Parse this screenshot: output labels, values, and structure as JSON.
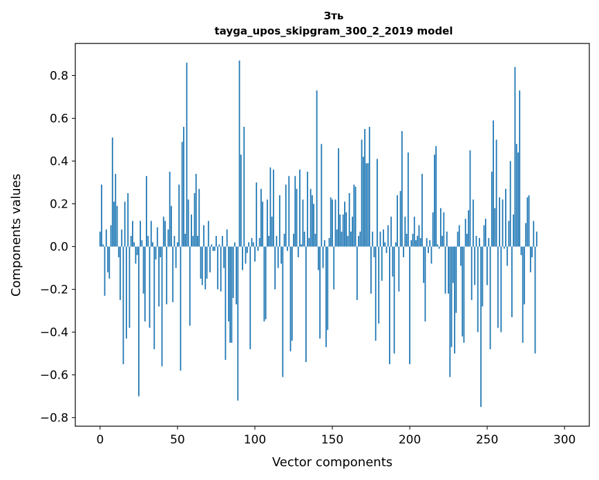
{
  "chart_data": {
    "type": "bar",
    "title_line1": "Зть",
    "title_line2": "tayga_upos_skipgram_300_2_2019 model",
    "xlabel": "Vector components",
    "ylabel": "Components values",
    "xlim": [
      -16,
      316
    ],
    "ylim": [
      -0.84,
      0.95
    ],
    "x_ticks": [
      0,
      50,
      100,
      150,
      200,
      250,
      300
    ],
    "x_tick_labels": [
      "0",
      "50",
      "100",
      "150",
      "200",
      "250",
      "300"
    ],
    "y_ticks": [
      -0.8,
      -0.6,
      -0.4,
      -0.2,
      0.0,
      0.2,
      0.4,
      0.6,
      0.8
    ],
    "y_tick_labels": [
      "−0.8",
      "−0.6",
      "−0.4",
      "−0.2",
      "0.0",
      "0.2",
      "0.4",
      "0.6",
      "0.8"
    ],
    "bar_color": "#1f77b4",
    "values": [
      0.07,
      0.29,
      0.01,
      -0.23,
      0.08,
      -0.12,
      -0.15,
      0.1,
      0.51,
      0.21,
      0.34,
      0.19,
      -0.05,
      -0.25,
      0.08,
      -0.55,
      0.21,
      -0.43,
      0.25,
      -0.38,
      0.05,
      0.12,
      0.02,
      -0.08,
      -0.04,
      -0.7,
      0.12,
      0.03,
      -0.22,
      -0.35,
      0.33,
      0.05,
      -0.38,
      0.12,
      0.02,
      -0.48,
      -0.06,
      0.09,
      -0.28,
      -0.05,
      -0.56,
      0.14,
      0.12,
      -0.27,
      0.08,
      0.35,
      0.19,
      -0.26,
      0.05,
      -0.1,
      0.02,
      0.29,
      -0.58,
      0.49,
      0.56,
      0.06,
      0.86,
      0.22,
      -0.37,
      0.15,
      0.05,
      0.25,
      0.34,
      0.05,
      0.27,
      -0.15,
      -0.18,
      0.1,
      -0.2,
      -0.15,
      0.12,
      -0.12,
      0.01,
      -0.02,
      -0.02,
      0.05,
      -0.2,
      0.01,
      -0.21,
      0.05,
      -0.1,
      -0.53,
      0.08,
      -0.35,
      -0.45,
      -0.45,
      -0.24,
      0.02,
      -0.27,
      -0.72,
      0.87,
      0.43,
      -0.11,
      0.56,
      -0.08,
      -0.03,
      0.02,
      -0.48,
      0.04,
      0.02,
      -0.07,
      0.3,
      -0.02,
      0.04,
      0.27,
      0.21,
      -0.35,
      -0.34,
      0.22,
      0.05,
      0.37,
      0.14,
      0.36,
      -0.2,
      0.05,
      -0.1,
      0.24,
      -0.08,
      -0.61,
      0.06,
      0.29,
      -0.02,
      0.33,
      -0.49,
      -0.44,
      0.06,
      0.33,
      0.27,
      -0.05,
      0.36,
      0.01,
      0.22,
      0.07,
      -0.54,
      0.35,
      0.04,
      0.27,
      0.24,
      0.2,
      0.06,
      0.73,
      -0.11,
      -0.43,
      0.48,
      -0.1,
      0.03,
      -0.47,
      -0.39,
      0.04,
      0.23,
      0.22,
      -0.2,
      0.22,
      0.08,
      0.46,
      0.15,
      0.07,
      0.15,
      0.21,
      0.16,
      0.05,
      0.25,
      0.07,
      0.14,
      0.29,
      0.28,
      -0.25,
      0.05,
      0.07,
      0.5,
      0.42,
      0.55,
      0.39,
      0.39,
      0.56,
      -0.22,
      0.07,
      -0.05,
      -0.44,
      0.41,
      -0.36,
      0.07,
      -0.16,
      0.08,
      0.02,
      -0.03,
      0.1,
      -0.55,
      0.14,
      -0.14,
      -0.5,
      0.02,
      0.24,
      -0.21,
      0.26,
      0.54,
      -0.05,
      0.14,
      0.06,
      0.44,
      -0.55,
      0.03,
      0.06,
      0.14,
      0.03,
      0.05,
      0.1,
      0.04,
      0.34,
      -0.17,
      -0.35,
      0.04,
      -0.03,
      0.03,
      -0.08,
      0.16,
      0.43,
      0.47,
      0.01,
      -0.01,
      0.18,
      0.05,
      0.16,
      -0.22,
      0.07,
      -0.22,
      -0.61,
      -0.47,
      -0.17,
      -0.5,
      -0.31,
      0.07,
      0.1,
      -0.09,
      -0.42,
      -0.45,
      0.13,
      0.06,
      0.17,
      0.45,
      -0.25,
      0.22,
      -0.18,
      0.05,
      -0.4,
      0.04,
      -0.75,
      -0.28,
      0.1,
      0.13,
      -0.18,
      0.04,
      -0.48,
      0.35,
      0.59,
      0.18,
      0.5,
      -0.38,
      0.23,
      -0.4,
      0.22,
      -0.01,
      0.27,
      -0.09,
      0.12,
      0.4,
      -0.33,
      0.15,
      0.84,
      0.48,
      0.44,
      0.73,
      -0.04,
      -0.45,
      -0.27,
      0.11,
      0.23,
      0.24,
      -0.12,
      -0.05,
      0.12,
      -0.5,
      0.07
    ]
  }
}
